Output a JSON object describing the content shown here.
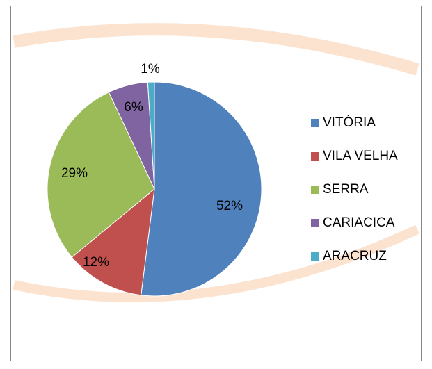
{
  "chart_data": {
    "type": "pie",
    "categories": [
      "VITÓRIA",
      "VILA VELHA",
      "SERRA",
      "CARIACICA",
      "ARACRUZ"
    ],
    "values": [
      52,
      12,
      29,
      6,
      1
    ],
    "value_labels": [
      "52%",
      "12%",
      "29%",
      "6%",
      "1%"
    ],
    "colors": [
      "#4f81bd",
      "#c0504d",
      "#9bbb59",
      "#8064a2",
      "#4bacc6"
    ],
    "legend": "right"
  }
}
